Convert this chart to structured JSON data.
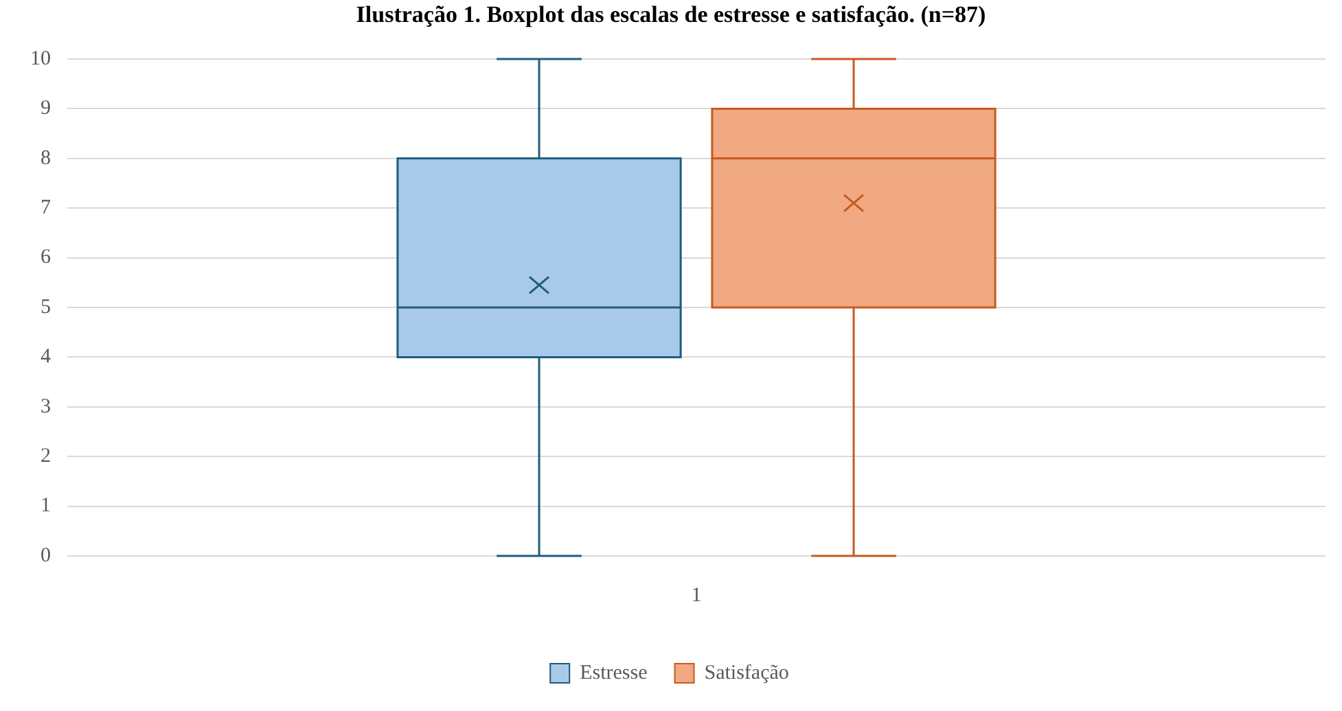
{
  "chart_data": {
    "type": "box",
    "title": "Ilustração 1. Boxplot das escalas de estresse e satisfação. (n=87)",
    "categories": [
      "1"
    ],
    "series": [
      {
        "name": "Estresse",
        "color": "#a9c9eb",
        "boxes": [
          {
            "low": 0,
            "q1": 4,
            "median": 5,
            "q3": 8,
            "high": 10,
            "mean": 5.45
          }
        ]
      },
      {
        "name": "Satisfação",
        "color": "#f0a982",
        "boxes": [
          {
            "low": 0,
            "q1": 5,
            "median": 8,
            "q3": 9,
            "high": 10,
            "mean": 7.1
          }
        ]
      }
    ],
    "ylim": [
      0,
      10
    ],
    "yticks": [
      0,
      1,
      2,
      3,
      4,
      5,
      6,
      7,
      8,
      9,
      10
    ],
    "grid": "y",
    "legend": "bottom"
  }
}
